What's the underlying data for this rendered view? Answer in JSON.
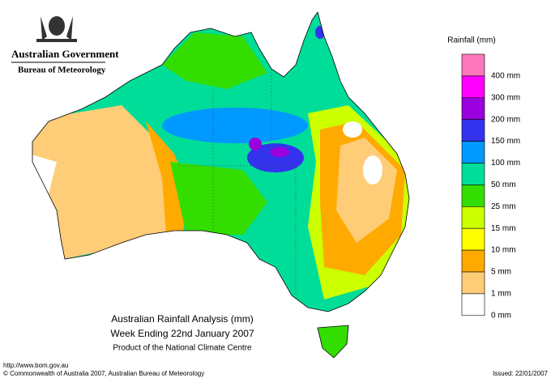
{
  "header": {
    "agency": "Australian Government",
    "bureau": "Bureau of Meteorology"
  },
  "legend": {
    "title": "Rainfall (mm)",
    "swatches": [
      "#ff77bb",
      "#ff00ff",
      "#9900dd",
      "#3333ee",
      "#0099ff",
      "#00dd99",
      "#33dd00",
      "#ccff00",
      "#ffff00",
      "#ffaa00",
      "#ffcc77",
      "#ffffff"
    ],
    "labels": [
      "400 mm",
      "300 mm",
      "200 mm",
      "150 mm",
      "100 mm",
      "50 mm",
      "25 mm",
      "15 mm",
      "10 mm",
      "5 mm",
      "1 mm",
      "0 mm"
    ]
  },
  "caption": {
    "title": "Australian Rainfall Analysis (mm)",
    "period": "Week Ending 22nd January 2007",
    "product": "Product of the National Climate Centre"
  },
  "footer": {
    "url": "http://www.bom.gov.au",
    "copyright": "© Commonwealth of Australia 2007, Australian Bureau of Meteorology",
    "issued": "Issued: 22/01/2007"
  }
}
